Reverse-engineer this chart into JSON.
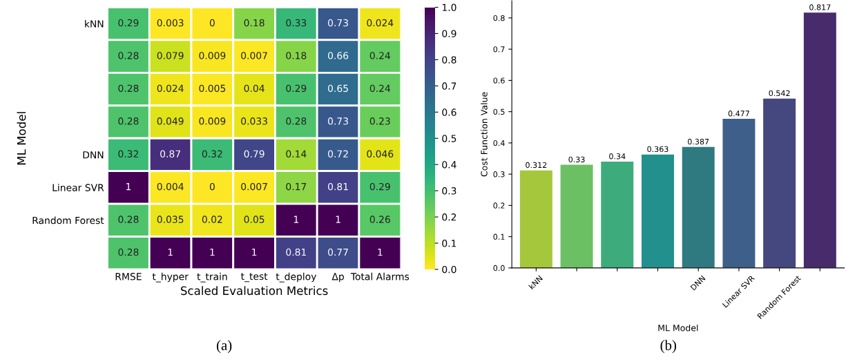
{
  "chart_data": [
    {
      "type": "heatmap",
      "xlabel": "Scaled Evaluation Metrics",
      "ylabel": "ML Model",
      "categories": [
        "RMSE",
        "t_hyper",
        "t_train",
        "t_test",
        "t_deploy",
        "Δp",
        "Total Alarms"
      ],
      "y_categories": [
        "kNN",
        null,
        null,
        null,
        "DNN",
        "Linear SVR",
        "Random Forest",
        null
      ],
      "cells": [
        [
          0.29,
          0.003,
          0,
          0.18,
          0.33,
          0.73,
          0.024
        ],
        [
          0.28,
          0.079,
          0.009,
          0.007,
          0.18,
          0.66,
          0.24
        ],
        [
          0.28,
          0.024,
          0.005,
          0.04,
          0.29,
          0.65,
          0.24
        ],
        [
          0.28,
          0.049,
          0.009,
          0.033,
          0.28,
          0.73,
          0.23
        ],
        [
          0.32,
          0.87,
          0.32,
          0.79,
          0.14,
          0.72,
          0.046
        ],
        [
          1,
          0.004,
          0,
          0.007,
          0.17,
          0.81,
          0.29
        ],
        [
          0.28,
          0.035,
          0.02,
          0.05,
          1,
          1,
          0.26
        ],
        [
          0.28,
          1,
          1,
          1,
          0.81,
          0.77,
          1
        ]
      ],
      "clim": [
        0,
        1
      ],
      "cticks": [
        {
          "value": 0,
          "label": "0.0"
        },
        {
          "value": 0.1,
          "label": "0.1"
        },
        {
          "value": 0.2,
          "label": "0.2"
        },
        {
          "value": 0.3,
          "label": "0.3"
        },
        {
          "value": 0.4,
          "label": "0.4"
        },
        {
          "value": 0.5,
          "label": "0.5"
        },
        {
          "value": 0.6,
          "label": "0.6"
        },
        {
          "value": 0.7,
          "label": "0.7"
        },
        {
          "value": 0.8,
          "label": "0.8"
        },
        {
          "value": 0.9,
          "label": "0.9"
        },
        {
          "value": 1,
          "label": "1.0"
        }
      ],
      "data_labels": true,
      "annotations": [
        "(a)"
      ]
    },
    {
      "type": "bar",
      "xlabel": "ML Model",
      "ylabel": "Cost Function Value",
      "categories": [
        "kNN",
        null,
        null,
        null,
        "DNN",
        "Linear SVR",
        "Random Forest",
        null
      ],
      "values": [
        0.312,
        0.33,
        0.34,
        0.363,
        0.387,
        0.477,
        0.542,
        0.817
      ],
      "colors": [
        "#a5c73c",
        "#6cc064",
        "#3eab7c",
        "#22908c",
        "#2f7a80",
        "#3d5f89",
        "#45477f",
        "#472b6a"
      ],
      "ylim": [
        0,
        0.855
      ],
      "yticks": [
        {
          "value": 0,
          "label": "0.0"
        },
        {
          "value": 0.1,
          "label": "0.1"
        },
        {
          "value": 0.2,
          "label": "0.2"
        },
        {
          "value": 0.3,
          "label": "0.3"
        },
        {
          "value": 0.4,
          "label": "0.4"
        },
        {
          "value": 0.5,
          "label": "0.5"
        },
        {
          "value": 0.6,
          "label": "0.6"
        },
        {
          "value": 0.7,
          "label": "0.7"
        },
        {
          "value": 0.8,
          "label": "0.8"
        }
      ],
      "data_labels": true,
      "annotations": [
        "(b)"
      ]
    }
  ]
}
